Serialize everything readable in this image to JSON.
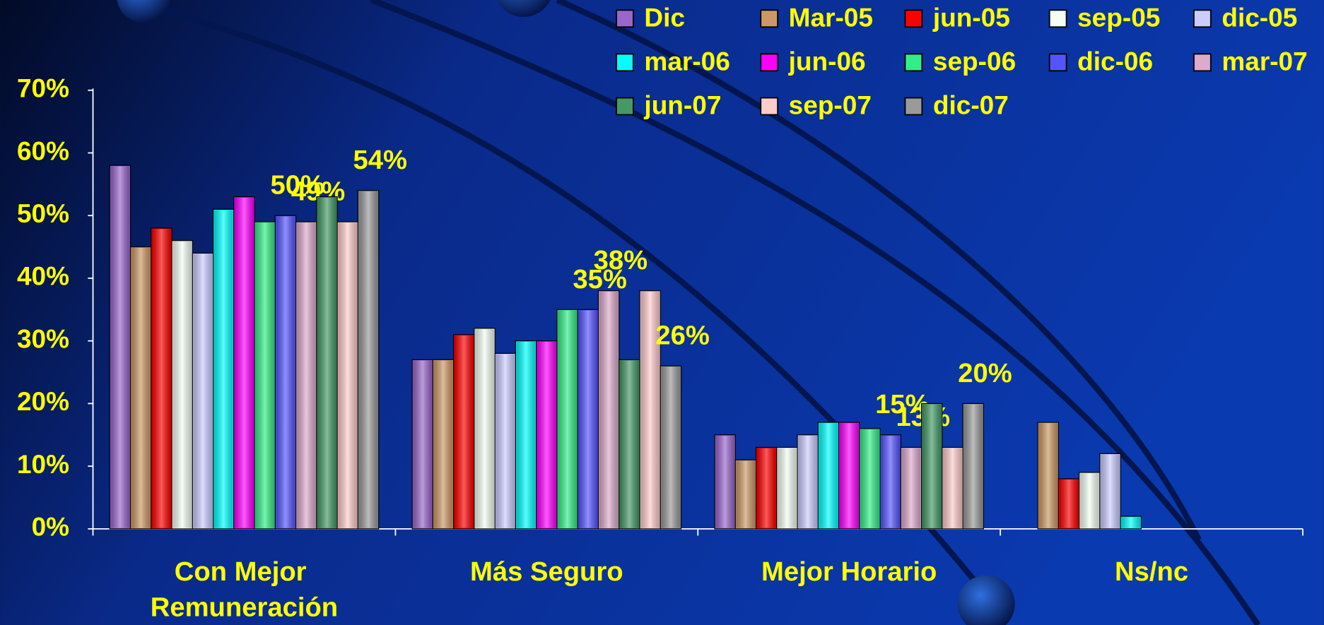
{
  "chart_data": {
    "type": "bar",
    "categories": [
      "Con Mejor Remuneración",
      "Más Seguro",
      "Mejor Horario",
      "Ns/nc"
    ],
    "series": [
      {
        "name": "Dic",
        "color": "#9966cc",
        "values": [
          58,
          27,
          15,
          null
        ]
      },
      {
        "name": "Mar-05",
        "color": "#cc9966",
        "values": [
          45,
          27,
          11,
          17
        ]
      },
      {
        "name": "jun-05",
        "color": "#ff0000",
        "values": [
          48,
          31,
          13,
          8
        ]
      },
      {
        "name": "sep-05",
        "color": "#f4fff4",
        "values": [
          46,
          32,
          13,
          9
        ]
      },
      {
        "name": "dic-05",
        "color": "#ccccff",
        "values": [
          44,
          28,
          15,
          12
        ]
      },
      {
        "name": "mar-06",
        "color": "#00ffff",
        "values": [
          51,
          30,
          17,
          2
        ]
      },
      {
        "name": "jun-06",
        "color": "#ff00ff",
        "values": [
          53,
          30,
          17,
          null
        ]
      },
      {
        "name": "sep-06",
        "color": "#33ee88",
        "values": [
          49,
          35,
          16,
          null
        ]
      },
      {
        "name": "dic-06",
        "color": "#5555ff",
        "values": [
          50,
          35,
          15,
          null
        ],
        "value_labels": [
          "50%",
          "35%",
          "15%",
          null
        ]
      },
      {
        "name": "mar-07",
        "color": "#ddaacc",
        "values": [
          49,
          38,
          13,
          null
        ],
        "value_labels": [
          "49%",
          "38%",
          "13%",
          null
        ]
      },
      {
        "name": "jun-07",
        "color": "#449966",
        "values": [
          53,
          27,
          20,
          null
        ]
      },
      {
        "name": "sep-07",
        "color": "#ffcccc",
        "values": [
          49,
          38,
          13,
          null
        ]
      },
      {
        "name": "dic-07",
        "color": "#9a9a9a",
        "values": [
          54,
          26,
          20,
          null
        ],
        "value_labels": [
          "54%",
          "26%",
          "20%",
          null
        ]
      }
    ],
    "ylim": [
      0,
      70
    ],
    "yticks": [
      {
        "value": 0,
        "label": "0%"
      },
      {
        "value": 10,
        "label": "10%"
      },
      {
        "value": 20,
        "label": "20%"
      },
      {
        "value": 30,
        "label": "30%"
      },
      {
        "value": 40,
        "label": "40%"
      },
      {
        "value": 50,
        "label": "50%"
      },
      {
        "value": 60,
        "label": "60%"
      },
      {
        "value": 70,
        "label": "70%"
      }
    ]
  }
}
